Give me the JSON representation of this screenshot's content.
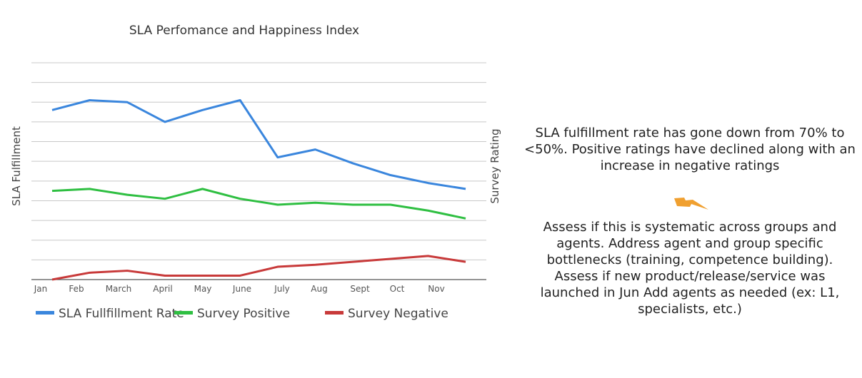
{
  "chart_data": {
    "type": "line",
    "title": "SLA  Perfomance and Happiness Index",
    "ylabel": "SLA Fulfillment",
    "y2label": "Survey Rating",
    "xlabel": "",
    "categories": [
      "Jan",
      "Feb",
      "March",
      "April",
      "May",
      "June",
      "July",
      "Aug",
      "Sept",
      "Oct",
      "Nov",
      ""
    ],
    "tick_labels": [
      "Jan",
      "Feb",
      "March",
      "April",
      "May",
      "June",
      "July",
      "Aug",
      "Sept",
      "Oct",
      "Nov"
    ],
    "ylim": [
      0,
      11
    ],
    "grid": true,
    "gridlines": 11,
    "series": [
      {
        "name": "SLA Fullfillment Rate",
        "color": "#3a86dd",
        "values": [
          8.6,
          9.1,
          9.0,
          8.0,
          8.6,
          9.1,
          6.2,
          6.6,
          5.9,
          5.3,
          4.9,
          4.6
        ]
      },
      {
        "name": "Survey Positive",
        "color": "#2fbf42",
        "values": [
          4.5,
          4.6,
          4.3,
          4.1,
          4.6,
          4.1,
          3.8,
          3.9,
          3.8,
          3.8,
          3.5,
          3.1
        ]
      },
      {
        "name": "Survey Negative",
        "color": "#c83a3a",
        "values": [
          0.0,
          0.35,
          0.45,
          0.2,
          0.2,
          0.2,
          0.65,
          0.75,
          0.9,
          1.05,
          1.2,
          0.9
        ]
      }
    ],
    "legend_position": "bottom-left"
  },
  "notes": {
    "finding": "SLA fulfillment rate has gone down from 70% to <50%. Positive ratings have declined along with an increase in negative ratings",
    "recommendation": "Assess if this is systematic across groups and agents. Address agent and group specific bottlenecks (training, competence building). Assess if new product/release/service  was launched in Jun Add agents as needed (ex: L1, specialists, etc.)",
    "icon": "lightning-bolt-icon",
    "icon_color": "#f0a030"
  }
}
